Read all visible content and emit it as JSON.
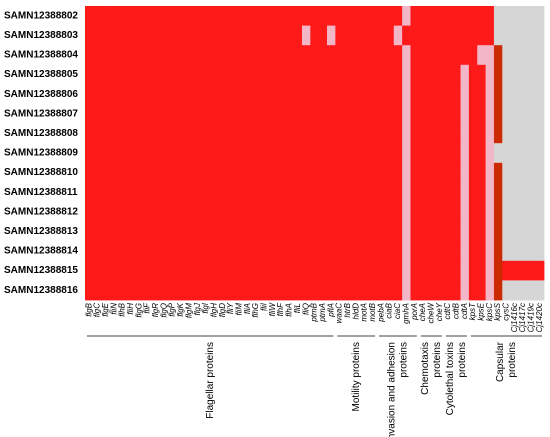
{
  "chart_data": {
    "type": "heatmap",
    "rows": [
      "SAMN12388802",
      "SAMN12388803",
      "SAMN12388804",
      "SAMN12388805",
      "SAMN12388806",
      "SAMN12388807",
      "SAMN12388808",
      "SAMN12388809",
      "SAMN12388810",
      "SAMN12388811",
      "SAMN12388812",
      "SAMN12388813",
      "SAMN12388814",
      "SAMN12388815",
      "SAMN12388816"
    ],
    "categories": [
      "flgB",
      "flgC",
      "flgE",
      "fliN",
      "flhB",
      "fliH",
      "flgG",
      "fliF",
      "flgR",
      "flgQ",
      "flgP",
      "flgK",
      "flgM",
      "flgJ",
      "flgI",
      "flgH",
      "flgD",
      "fliY",
      "fliM",
      "fliA",
      "flhG",
      "fliI",
      "fliW",
      "flhF",
      "flhA",
      "fliL",
      "fliQ",
      "ptmB",
      "ptmA",
      "pflA",
      "waaC",
      "htrB",
      "hldD",
      "motA",
      "motB",
      "pebA",
      "ciaB",
      "ciaC",
      "gmhA",
      "porA",
      "cheA",
      "cheW",
      "cheY",
      "cdtC",
      "cdtB",
      "cdtA",
      "kpsT",
      "kpsE",
      "kpsC",
      "kpsS",
      "cysC",
      "Cj1416c",
      "Cj1417c",
      "Cj1419c",
      "Cj1420c"
    ],
    "groups": [
      {
        "label": [
          "Flagellar proteins"
        ],
        "start": 0,
        "end": 29
      },
      {
        "label": [
          "Motility proteins"
        ],
        "start": 30,
        "end": 34
      },
      {
        "label": [
          "Invasion and adhesion",
          "proteins"
        ],
        "start": 35,
        "end": 39
      },
      {
        "label": [
          "Chemotaxis",
          "proteins"
        ],
        "start": 40,
        "end": 42
      },
      {
        "label": [
          "Cytolethal toxins",
          "proteins"
        ],
        "start": 43,
        "end": 45
      },
      {
        "label": [
          "Capsular",
          "proteins"
        ],
        "start": 46,
        "end": 54
      }
    ],
    "colors": [
      "#d6d6d6",
      "#f2b6c6",
      "#ff1a1a",
      "#cc2a00"
    ],
    "values": [
      [
        2,
        2,
        2,
        2,
        2,
        2,
        2,
        2,
        2,
        2,
        2,
        2,
        2,
        2,
        2,
        2,
        2,
        2,
        2,
        2,
        2,
        2,
        2,
        2,
        2,
        2,
        2,
        2,
        2,
        2,
        2,
        2,
        2,
        2,
        2,
        2,
        2,
        2,
        1,
        2,
        2,
        2,
        2,
        2,
        2,
        2,
        2,
        2,
        2,
        0,
        0,
        0,
        0,
        0,
        0
      ],
      [
        2,
        2,
        2,
        2,
        2,
        2,
        2,
        2,
        2,
        2,
        2,
        2,
        2,
        2,
        2,
        2,
        2,
        2,
        2,
        2,
        2,
        2,
        2,
        2,
        2,
        2,
        1,
        2,
        2,
        1,
        2,
        2,
        2,
        2,
        2,
        2,
        2,
        1,
        2,
        2,
        2,
        2,
        2,
        2,
        2,
        2,
        2,
        2,
        2,
        0,
        0,
        0,
        0,
        0,
        0
      ],
      [
        2,
        2,
        2,
        2,
        2,
        2,
        2,
        2,
        2,
        2,
        2,
        2,
        2,
        2,
        2,
        2,
        2,
        2,
        2,
        2,
        2,
        2,
        2,
        2,
        2,
        2,
        2,
        2,
        2,
        2,
        2,
        2,
        2,
        2,
        2,
        2,
        2,
        2,
        1,
        2,
        2,
        2,
        2,
        2,
        2,
        2,
        2,
        1,
        1,
        3,
        0,
        0,
        0,
        0,
        0
      ],
      [
        2,
        2,
        2,
        2,
        2,
        2,
        2,
        2,
        2,
        2,
        2,
        2,
        2,
        2,
        2,
        2,
        2,
        2,
        2,
        2,
        2,
        2,
        2,
        2,
        2,
        2,
        2,
        2,
        2,
        2,
        2,
        2,
        2,
        2,
        2,
        2,
        2,
        2,
        1,
        2,
        2,
        2,
        2,
        2,
        2,
        1,
        2,
        2,
        1,
        3,
        0,
        0,
        0,
        0,
        0
      ],
      [
        2,
        2,
        2,
        2,
        2,
        2,
        2,
        2,
        2,
        2,
        2,
        2,
        2,
        2,
        2,
        2,
        2,
        2,
        2,
        2,
        2,
        2,
        2,
        2,
        2,
        2,
        2,
        2,
        2,
        2,
        2,
        2,
        2,
        2,
        2,
        2,
        2,
        2,
        1,
        2,
        2,
        2,
        2,
        2,
        2,
        1,
        2,
        2,
        1,
        3,
        0,
        0,
        0,
        0,
        0
      ],
      [
        2,
        2,
        2,
        2,
        2,
        2,
        2,
        2,
        2,
        2,
        2,
        2,
        2,
        2,
        2,
        2,
        2,
        2,
        2,
        2,
        2,
        2,
        2,
        2,
        2,
        2,
        2,
        2,
        2,
        2,
        2,
        2,
        2,
        2,
        2,
        2,
        2,
        2,
        1,
        2,
        2,
        2,
        2,
        2,
        2,
        1,
        2,
        2,
        1,
        3,
        0,
        0,
        0,
        0,
        0
      ],
      [
        2,
        2,
        2,
        2,
        2,
        2,
        2,
        2,
        2,
        2,
        2,
        2,
        2,
        2,
        2,
        2,
        2,
        2,
        2,
        2,
        2,
        2,
        2,
        2,
        2,
        2,
        2,
        2,
        2,
        2,
        2,
        2,
        2,
        2,
        2,
        2,
        2,
        2,
        1,
        2,
        2,
        2,
        2,
        2,
        2,
        1,
        2,
        2,
        1,
        3,
        0,
        0,
        0,
        0,
        0
      ],
      [
        2,
        2,
        2,
        2,
        2,
        2,
        2,
        2,
        2,
        2,
        2,
        2,
        2,
        2,
        2,
        2,
        2,
        2,
        2,
        2,
        2,
        2,
        2,
        2,
        2,
        2,
        2,
        2,
        2,
        2,
        2,
        2,
        2,
        2,
        2,
        2,
        2,
        2,
        1,
        2,
        2,
        2,
        2,
        2,
        2,
        1,
        2,
        2,
        1,
        0,
        0,
        0,
        0,
        0,
        0
      ],
      [
        2,
        2,
        2,
        2,
        2,
        2,
        2,
        2,
        2,
        2,
        2,
        2,
        2,
        2,
        2,
        2,
        2,
        2,
        2,
        2,
        2,
        2,
        2,
        2,
        2,
        2,
        2,
        2,
        2,
        2,
        2,
        2,
        2,
        2,
        2,
        2,
        2,
        2,
        1,
        2,
        2,
        2,
        2,
        2,
        2,
        1,
        2,
        2,
        1,
        3,
        0,
        0,
        0,
        0,
        0
      ],
      [
        2,
        2,
        2,
        2,
        2,
        2,
        2,
        2,
        2,
        2,
        2,
        2,
        2,
        2,
        2,
        2,
        2,
        2,
        2,
        2,
        2,
        2,
        2,
        2,
        2,
        2,
        2,
        2,
        2,
        2,
        2,
        2,
        2,
        2,
        2,
        2,
        2,
        2,
        1,
        2,
        2,
        2,
        2,
        2,
        2,
        1,
        2,
        2,
        1,
        3,
        0,
        0,
        0,
        0,
        0
      ],
      [
        2,
        2,
        2,
        2,
        2,
        2,
        2,
        2,
        2,
        2,
        2,
        2,
        2,
        2,
        2,
        2,
        2,
        2,
        2,
        2,
        2,
        2,
        2,
        2,
        2,
        2,
        2,
        2,
        2,
        2,
        2,
        2,
        2,
        2,
        2,
        2,
        2,
        2,
        1,
        2,
        2,
        2,
        2,
        2,
        2,
        1,
        2,
        2,
        1,
        3,
        0,
        0,
        0,
        0,
        0
      ],
      [
        2,
        2,
        2,
        2,
        2,
        2,
        2,
        2,
        2,
        2,
        2,
        2,
        2,
        2,
        2,
        2,
        2,
        2,
        2,
        2,
        2,
        2,
        2,
        2,
        2,
        2,
        2,
        2,
        2,
        2,
        2,
        2,
        2,
        2,
        2,
        2,
        2,
        2,
        1,
        2,
        2,
        2,
        2,
        2,
        2,
        1,
        2,
        2,
        1,
        3,
        0,
        0,
        0,
        0,
        0
      ],
      [
        2,
        2,
        2,
        2,
        2,
        2,
        2,
        2,
        2,
        2,
        2,
        2,
        2,
        2,
        2,
        2,
        2,
        2,
        2,
        2,
        2,
        2,
        2,
        2,
        2,
        2,
        2,
        2,
        2,
        2,
        2,
        2,
        2,
        2,
        2,
        2,
        2,
        2,
        1,
        2,
        2,
        2,
        2,
        2,
        2,
        1,
        2,
        2,
        1,
        3,
        0,
        0,
        0,
        0,
        0
      ],
      [
        2,
        2,
        2,
        2,
        2,
        2,
        2,
        2,
        2,
        2,
        2,
        2,
        2,
        2,
        2,
        2,
        2,
        2,
        2,
        2,
        2,
        2,
        2,
        2,
        2,
        2,
        2,
        2,
        2,
        2,
        2,
        2,
        2,
        2,
        2,
        2,
        2,
        2,
        1,
        2,
        2,
        2,
        2,
        2,
        2,
        1,
        2,
        2,
        1,
        3,
        2,
        2,
        2,
        2,
        2
      ],
      [
        2,
        2,
        2,
        2,
        2,
        2,
        2,
        2,
        2,
        2,
        2,
        2,
        2,
        2,
        2,
        2,
        2,
        2,
        2,
        2,
        2,
        2,
        2,
        2,
        2,
        2,
        2,
        2,
        2,
        2,
        2,
        2,
        2,
        2,
        2,
        2,
        2,
        2,
        1,
        2,
        2,
        2,
        2,
        2,
        2,
        1,
        2,
        2,
        1,
        3,
        0,
        0,
        0,
        0,
        0
      ]
    ]
  }
}
